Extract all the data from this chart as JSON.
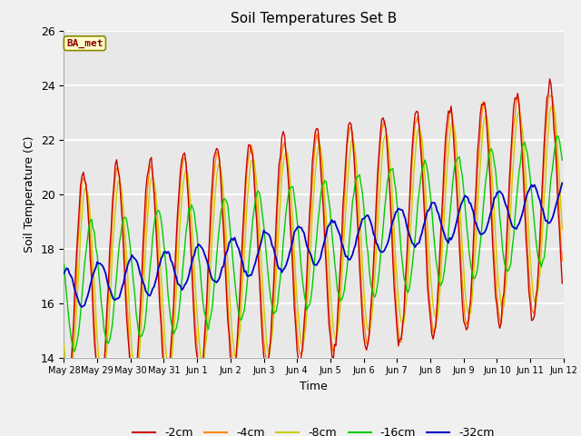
{
  "title": "Soil Temperatures Set B",
  "xlabel": "Time",
  "ylabel": "Soil Temperature (C)",
  "ylim": [
    14,
    26
  ],
  "yticks": [
    14,
    16,
    18,
    20,
    22,
    24,
    26
  ],
  "annotation": "BA_met",
  "colors": {
    "-2cm": "#cc0000",
    "-4cm": "#ff8800",
    "-8cm": "#cccc00",
    "-16cm": "#00cc00",
    "-32cm": "#0000cc"
  },
  "legend_labels": [
    "-2cm",
    "-4cm",
    "-8cm",
    "-16cm",
    "-32cm"
  ],
  "fig_bg": "#f0f0f0",
  "ax_bg": "#e8e8e8",
  "x_tick_labels": [
    "May 28",
    "May 29",
    "May 30",
    "May 31",
    "Jun 1",
    "Jun 2",
    "Jun 3",
    "Jun 4",
    "Jun 5",
    "Jun 6",
    "Jun 7",
    "Jun 8",
    "Jun 9",
    "Jun 10",
    "Jun 11",
    "Jun 12"
  ],
  "x_tick_positions": [
    0,
    24,
    48,
    72,
    96,
    120,
    144,
    168,
    192,
    216,
    240,
    264,
    288,
    312,
    336,
    360
  ]
}
